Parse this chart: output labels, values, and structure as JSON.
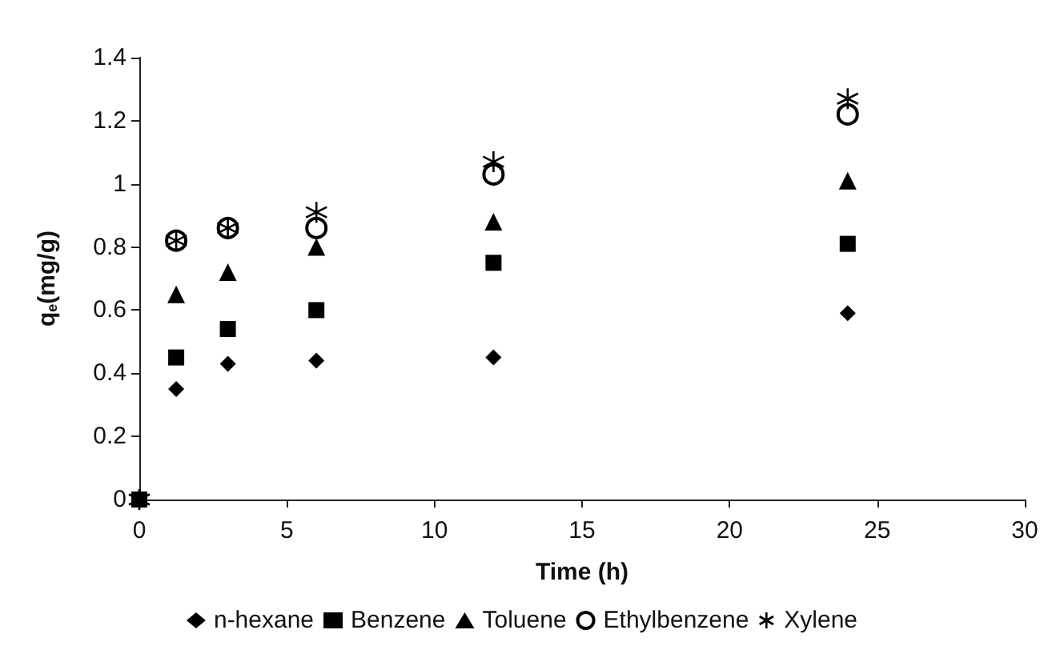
{
  "chart_data": {
    "type": "scatter",
    "xlabel": "Time (h)",
    "ylabel": "q$_{e}$(mg/g)",
    "x": [
      0,
      1.25,
      3,
      6,
      12,
      24
    ],
    "series": [
      {
        "name": "n-hexane",
        "color": "#000000",
        "marker": "diamond",
        "values": [
          null,
          0.35,
          0.43,
          0.44,
          0.45,
          0.59
        ]
      },
      {
        "name": "Benzene",
        "color": "#000000",
        "marker": "square",
        "values": [
          0,
          0.45,
          0.54,
          0.6,
          0.75,
          0.81
        ]
      },
      {
        "name": "Toluene",
        "color": "#000000",
        "marker": "triangle",
        "values": [
          null,
          0.65,
          0.72,
          0.8,
          0.88,
          1.01
        ]
      },
      {
        "name": "Ethylbenzene",
        "color": "#000000",
        "marker": "circle",
        "values": [
          null,
          0.82,
          0.86,
          0.86,
          1.03,
          1.22
        ]
      },
      {
        "name": "Xylene",
        "color": "#000000",
        "marker": "cross",
        "values": [
          0,
          0.82,
          0.86,
          0.91,
          1.07,
          1.27
        ]
      }
    ],
    "xlim": [
      0,
      30
    ],
    "xticks": [
      0,
      5,
      10,
      15,
      20,
      25,
      30
    ],
    "ylim": [
      0,
      1.4
    ],
    "yticks": [
      0,
      0.2,
      0.4,
      0.6,
      0.8,
      1,
      1.2,
      1.4
    ],
    "grid": false,
    "legend": "bottom"
  }
}
